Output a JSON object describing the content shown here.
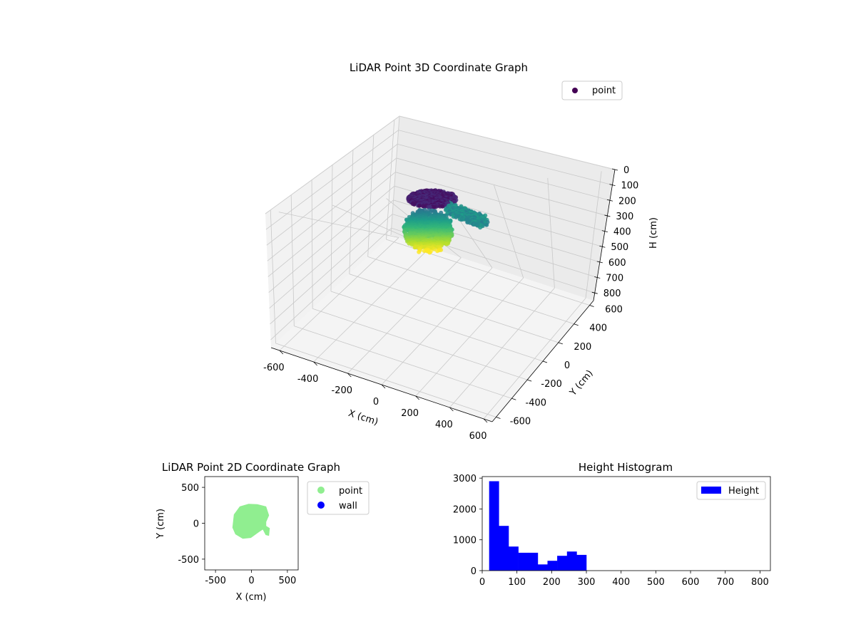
{
  "chart_data": [
    {
      "type": "scatter3d",
      "title": "LiDAR Point 3D Coordinate Graph",
      "xlabel": "X (cm)",
      "ylabel": "Y (cm)",
      "zlabel": "H (cm)",
      "xlim": [
        -650,
        650
      ],
      "ylim": [
        -650,
        650
      ],
      "zlim": [
        0,
        850
      ],
      "x_ticks": [
        -600,
        -400,
        -200,
        0,
        200,
        400,
        600
      ],
      "y_ticks": [
        -600,
        -400,
        -200,
        0,
        200,
        400,
        600
      ],
      "z_ticks": [
        0,
        100,
        200,
        300,
        400,
        500,
        600,
        700,
        800
      ],
      "z_inverted": true,
      "colormap": "viridis",
      "legend": {
        "label": "point",
        "placement": "upper-right"
      },
      "grid": true
    },
    {
      "type": "scatter",
      "title": "LiDAR Point 2D Coordinate Graph",
      "xlabel": "X (cm)",
      "ylabel": "Y (cm)",
      "xlim": [
        -650,
        650
      ],
      "ylim": [
        -650,
        650
      ],
      "x_ticks": [
        -500,
        0,
        500
      ],
      "y_ticks": [
        -500,
        0,
        500
      ],
      "series": [
        {
          "name": "point",
          "color": "#90ee90"
        },
        {
          "name": "wall",
          "color": "#0000ff"
        }
      ],
      "legend": {
        "placement": "outside-right"
      }
    },
    {
      "type": "bar",
      "title": "Height Histogram",
      "xlim": [
        0,
        830
      ],
      "ylim": [
        0,
        3050
      ],
      "x_ticks": [
        0,
        100,
        200,
        300,
        400,
        500,
        600,
        700,
        800
      ],
      "y_ticks": [
        0,
        1000,
        2000,
        3000
      ],
      "bin_edges": [
        20,
        48,
        76,
        104,
        132,
        160,
        188,
        216,
        244,
        272,
        300
      ],
      "values": [
        2900,
        1450,
        780,
        580,
        580,
        200,
        320,
        480,
        620,
        510
      ],
      "color": "#0000ff",
      "legend": {
        "label": "Height",
        "placement": "upper-right"
      }
    }
  ]
}
